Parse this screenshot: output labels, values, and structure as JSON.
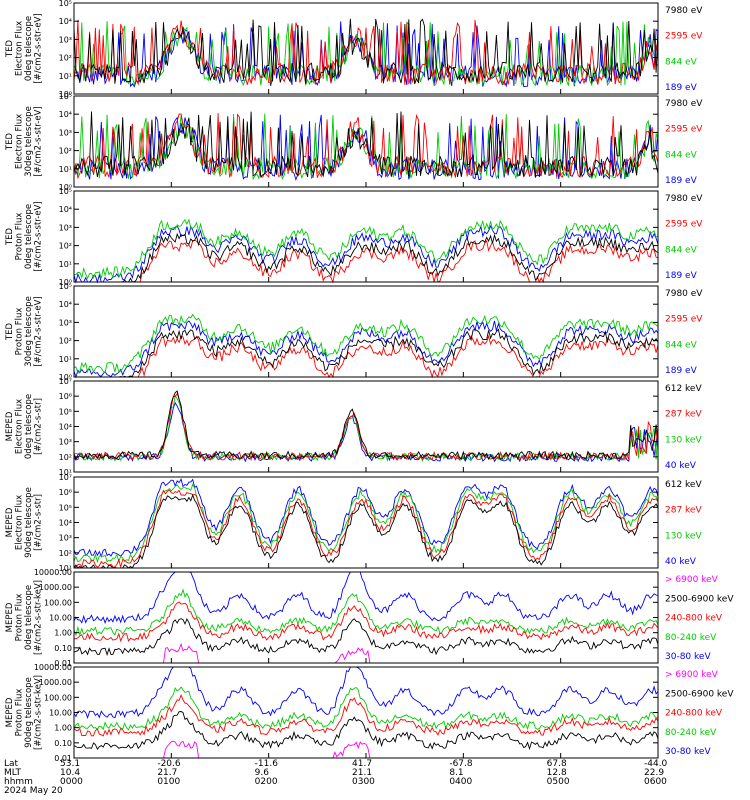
{
  "panels": [
    {
      "ylabel": [
        "TED",
        "Electron Flux",
        "0deg telescope",
        "[#/cm2-s-str-eV]"
      ],
      "yticks": [
        "10⁰",
        "10¹",
        "10²",
        "10³",
        "10⁴",
        "10⁵"
      ],
      "legend": [
        {
          "text": "7980 eV",
          "color": "#000000"
        },
        {
          "text": "2595 eV",
          "color": "#ff0000"
        },
        {
          "text": "844 eV",
          "color": "#00cc00"
        },
        {
          "text": "189 eV",
          "color": "#0000ff"
        }
      ]
    },
    {
      "ylabel": [
        "TED",
        "Electron Flux",
        "30deg telescope",
        "[#/cm2-s-str-eV]"
      ],
      "yticks": [
        "10⁰",
        "10¹",
        "10²",
        "10³",
        "10⁴",
        "10⁵"
      ],
      "legend": [
        {
          "text": "7980 eV",
          "color": "#000000"
        },
        {
          "text": "2595 eV",
          "color": "#ff0000"
        },
        {
          "text": "844 eV",
          "color": "#00cc00"
        },
        {
          "text": "189 eV",
          "color": "#0000ff"
        }
      ]
    },
    {
      "ylabel": [
        "TED",
        "Proton Flux",
        "0deg telescope",
        "[#/cm2-s-str-eV]"
      ],
      "yticks": [
        "10⁰",
        "10¹",
        "10²",
        "10³",
        "10⁴",
        "10⁵"
      ],
      "legend": [
        {
          "text": "7980 eV",
          "color": "#000000"
        },
        {
          "text": "2595 eV",
          "color": "#ff0000"
        },
        {
          "text": "844 eV",
          "color": "#00cc00"
        },
        {
          "text": "189 eV",
          "color": "#0000ff"
        }
      ]
    },
    {
      "ylabel": [
        "TED",
        "Proton Flux",
        "30deg telescope",
        "[#/cm2-s-str-eV]"
      ],
      "yticks": [
        "10⁰",
        "10¹",
        "10²",
        "10³",
        "10⁴",
        "10⁵"
      ],
      "legend": [
        {
          "text": "7980 eV",
          "color": "#000000"
        },
        {
          "text": "2595 eV",
          "color": "#ff0000"
        },
        {
          "text": "844 eV",
          "color": "#00cc00"
        },
        {
          "text": "189 eV",
          "color": "#0000ff"
        }
      ]
    },
    {
      "ylabel": [
        "MEPED",
        "Electron Flux",
        "0deg telescope",
        "[#/cm2-s-str]"
      ],
      "yticks": [
        "10¹",
        "10²",
        "10³",
        "10⁴",
        "10⁵",
        "10⁶",
        "10⁷"
      ],
      "legend": [
        {
          "text": "612 keV",
          "color": "#000000"
        },
        {
          "text": "287 keV",
          "color": "#ff0000"
        },
        {
          "text": "130 keV",
          "color": "#00cc00"
        },
        {
          "text": "40 keV",
          "color": "#0000ff"
        }
      ]
    },
    {
      "ylabel": [
        "MEPED",
        "Electron Flux",
        "90deg telescope",
        "[#/cm2-s-str]"
      ],
      "yticks": [
        "10¹",
        "10²",
        "10³",
        "10⁴",
        "10⁵",
        "10⁶",
        "10⁷"
      ],
      "legend": [
        {
          "text": "612 keV",
          "color": "#000000"
        },
        {
          "text": "287 keV",
          "color": "#ff0000"
        },
        {
          "text": "130 keV",
          "color": "#00cc00"
        },
        {
          "text": "40 keV",
          "color": "#0000ff"
        }
      ]
    },
    {
      "ylabel": [
        "MEPED",
        "Proton Flux",
        "0deg telescope",
        "[#/cm2-s-str-keV]"
      ],
      "yticks": [
        "0.01",
        "0.10",
        "1.00",
        "10.00",
        "100.00",
        "1000.00",
        "10000.00"
      ],
      "legend": [
        {
          "text": "> 6900 keV",
          "color": "#ff00ff"
        },
        {
          "text": "2500-6900 keV",
          "color": "#000000"
        },
        {
          "text": "240-800 keV",
          "color": "#ff0000"
        },
        {
          "text": "80-240 keV",
          "color": "#00cc00"
        },
        {
          "text": "30-80 keV",
          "color": "#0000ff"
        }
      ]
    },
    {
      "ylabel": [
        "MEPED",
        "Proton Flux",
        "90deg telescope",
        "[#/cm2-s-str-keV]"
      ],
      "yticks": [
        "0.01",
        "0.10",
        "1.00",
        "10.00",
        "100.00",
        "1000.00",
        "10000.00"
      ],
      "legend": [
        {
          "text": "> 6900 keV",
          "color": "#ff00ff"
        },
        {
          "text": "2500-6900 keV",
          "color": "#000000"
        },
        {
          "text": "240-800 keV",
          "color": "#ff0000"
        },
        {
          "text": "80-240 keV",
          "color": "#00cc00"
        },
        {
          "text": "30-80 keV",
          "color": "#0000ff"
        }
      ]
    }
  ],
  "footer": {
    "row_labels": [
      "Lat",
      "MLT",
      "hhmm",
      "2024 May 20"
    ],
    "columns": [
      {
        "lat": "53.1",
        "mlt": "10.4",
        "hhmm": "0000"
      },
      {
        "lat": "-20.6",
        "mlt": "21.7",
        "hhmm": "0100"
      },
      {
        "lat": "-11.6",
        "mlt": "9.6",
        "hhmm": "0200"
      },
      {
        "lat": "41.7",
        "mlt": "21.1",
        "hhmm": "0300"
      },
      {
        "lat": "-67.8",
        "mlt": "8.1",
        "hhmm": "0400"
      },
      {
        "lat": "67.8",
        "mlt": "12.8",
        "hhmm": "0500"
      },
      {
        "lat": "-44.0",
        "mlt": "22.9",
        "hhmm": "0600"
      }
    ]
  },
  "chart_data": {
    "type": "line",
    "description_free": true,
    "x_range_hours": [
      0,
      6
    ],
    "x_ticks_hhmm": [
      "0000",
      "0100",
      "0200",
      "0300",
      "0400",
      "0500",
      "0600"
    ],
    "series_colors": [
      "#000000",
      "#ff0000",
      "#00cc00",
      "#0000ff",
      "#ff00ff"
    ],
    "y_scale": "log",
    "grid": false,
    "legend_placement": "right",
    "panels_ylim_decades": [
      [
        0,
        5
      ],
      [
        0,
        5
      ],
      [
        0,
        5
      ],
      [
        0,
        5
      ],
      [
        1,
        7
      ],
      [
        1,
        7
      ],
      [
        -2,
        4
      ],
      [
        -2,
        4
      ]
    ]
  }
}
